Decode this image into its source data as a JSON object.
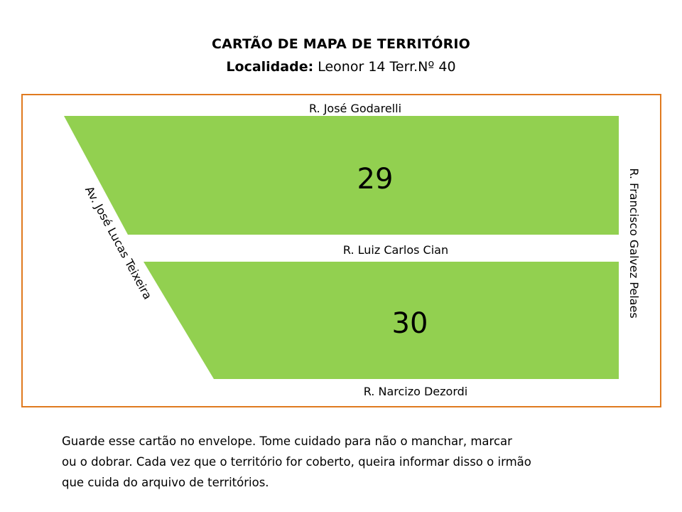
{
  "header": {
    "title": "CARTÃO DE MAPA DE TERRITÓRIO",
    "locality_label": "Localidade:",
    "locality_value": "Leonor 14 Terr.Nº 40"
  },
  "map": {
    "border_color": "#e07a1f",
    "block_color": "#92d050",
    "streets": {
      "top": "R. José Godarelli",
      "middle": "R. Luiz Carlos Cian",
      "bottom": "R. Narcizo Dezordi",
      "left": "Av. José Lucas Teixeira",
      "right": "R. Francisco Galvez Pelaes"
    },
    "blocks": [
      {
        "number": "29"
      },
      {
        "number": "30"
      }
    ]
  },
  "footer": {
    "lines": [
      "Guarde esse cartão no envelope. Tome cuidado para não o manchar, marcar",
      "ou o dobrar. Cada vez que o território for coberto, queira informar disso o irmão",
      "que cuida do arquivo de territórios."
    ]
  }
}
